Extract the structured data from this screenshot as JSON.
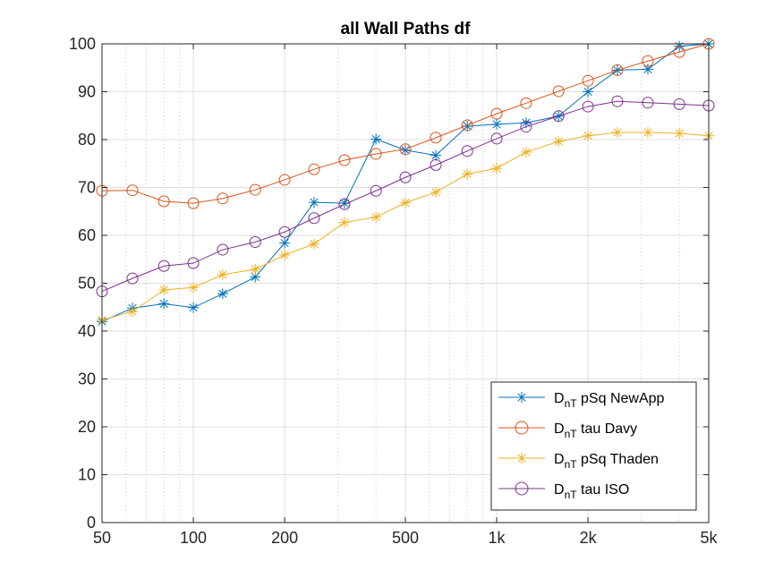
{
  "chart_data": {
    "type": "line",
    "title": "all Wall Paths df",
    "xlabel": "",
    "ylabel": "",
    "xscale": "log",
    "xlim": [
      50,
      5000
    ],
    "ylim": [
      0,
      100
    ],
    "grid": true,
    "minor_grid_x": true,
    "legend_position": "bottom-right",
    "x_ticks": [
      50,
      100,
      200,
      500,
      1000,
      2000,
      5000
    ],
    "x_tick_labels": [
      "50",
      "100",
      "200",
      "500",
      "1k",
      "2k",
      "5k"
    ],
    "y_ticks": [
      0,
      10,
      20,
      30,
      40,
      50,
      60,
      70,
      80,
      90,
      100
    ],
    "y_tick_labels": [
      "0",
      "10",
      "20",
      "30",
      "40",
      "50",
      "60",
      "70",
      "80",
      "90",
      "100"
    ],
    "x": [
      50,
      63,
      80,
      100,
      125,
      160,
      200,
      250,
      315,
      400,
      500,
      630,
      800,
      1000,
      1250,
      1600,
      2000,
      2500,
      3150,
      4000,
      5000
    ],
    "series": [
      {
        "name": "D",
        "name_sub": "nT",
        "name_rest": " pSq NewApp",
        "marker": "asterisk",
        "color": "#0072BD",
        "values": [
          42.0,
          44.8,
          45.7,
          44.9,
          47.8,
          51.3,
          58.4,
          66.9,
          66.7,
          80.1,
          77.8,
          76.7,
          82.8,
          83.2,
          83.5,
          84.9,
          90.0,
          94.5,
          94.7,
          99.5,
          100.0
        ]
      },
      {
        "name": "D",
        "name_sub": "nT",
        "name_rest": " tau Davy",
        "marker": "circle",
        "color": "#D95319",
        "values": [
          69.3,
          69.4,
          67.1,
          66.7,
          67.7,
          69.5,
          71.6,
          73.8,
          75.7,
          77.0,
          78.0,
          80.4,
          83.0,
          85.4,
          87.6,
          90.1,
          92.3,
          94.5,
          96.4,
          98.3,
          100.0
        ]
      },
      {
        "name": "D",
        "name_sub": "nT",
        "name_rest": " pSq Thaden",
        "marker": "asterisk",
        "color": "#EDB120",
        "values": [
          42.3,
          44.1,
          48.6,
          49.1,
          51.8,
          52.9,
          55.9,
          58.2,
          62.7,
          63.8,
          66.8,
          69.0,
          72.8,
          74.0,
          77.4,
          79.6,
          80.8,
          81.5,
          81.5,
          81.3,
          80.8
        ]
      },
      {
        "name": "D",
        "name_sub": "nT",
        "name_rest": " tau ISO",
        "marker": "circle",
        "color": "#7E2F8E",
        "values": [
          48.3,
          51.0,
          53.6,
          54.2,
          57.0,
          58.6,
          60.7,
          63.6,
          66.5,
          69.3,
          72.1,
          74.7,
          77.6,
          80.2,
          82.7,
          84.9,
          86.9,
          88.0,
          87.7,
          87.4,
          87.1
        ]
      }
    ]
  }
}
